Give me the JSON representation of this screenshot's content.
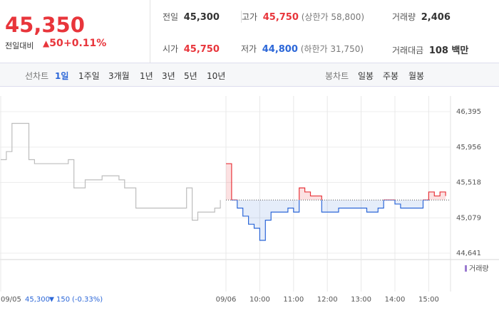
{
  "header": {
    "price": "45,350",
    "change_label": "전일대비",
    "change": "50",
    "change_rate": "+0.11%"
  },
  "summary": [
    {
      "label": "전일",
      "value": "45,300"
    },
    {
      "label": "고가",
      "value": "45,750",
      "note": "(상한가 58,800)"
    },
    {
      "label": "거래량",
      "value": "2,406"
    },
    {
      "label": "시가",
      "value": "45,750"
    },
    {
      "label": "저가",
      "value": "44,800",
      "note": "(하한가 31,750)"
    },
    {
      "label": "거래대금",
      "value": "108 백만"
    }
  ],
  "tabs": {
    "line_label": "선차트",
    "line": [
      "1일",
      "1주일",
      "3개월",
      "1년",
      "3년",
      "5년",
      "10년"
    ],
    "candle_label": "봉차트",
    "candle": [
      "일봉",
      "주봉",
      "월봉"
    ]
  },
  "chart_data": {
    "type": "line",
    "categories": [
      "09/05",
      null,
      null,
      null,
      null,
      null,
      null,
      null,
      null,
      null,
      null,
      null,
      null,
      null,
      null,
      null,
      null,
      null,
      null,
      null,
      null,
      null,
      null,
      null,
      null,
      null,
      null,
      null,
      null,
      null,
      null,
      null,
      null,
      null,
      null,
      null,
      null,
      null,
      null,
      null,
      "09/06",
      null,
      null,
      null,
      null,
      null,
      "10:00",
      null,
      null,
      null,
      null,
      null,
      "11:00",
      null,
      null,
      null,
      null,
      null,
      "12:00",
      null,
      null,
      null,
      null,
      null,
      "13:00",
      null,
      null,
      null,
      null,
      null,
      "14:00",
      null,
      null,
      null,
      null,
      null,
      "15:00",
      null,
      null,
      null
    ],
    "series": [
      {
        "color": "#bdbdbd",
        "values": [
          45800,
          45900,
          46250,
          46250,
          46250,
          45800,
          45750,
          45750,
          45750,
          45750,
          45750,
          45750,
          45800,
          45450,
          45450,
          45550,
          45550,
          45550,
          45600,
          45600,
          45600,
          45550,
          45450,
          45450,
          45200,
          45200,
          45200,
          45200,
          45200,
          45200,
          45200,
          45200,
          45200,
          45450,
          45050,
          45150,
          45150,
          45150,
          45200,
          45300,
          null,
          null,
          null,
          null,
          null,
          null,
          null,
          null,
          null,
          null,
          null,
          null,
          null,
          null,
          null,
          null,
          null,
          null,
          null,
          null,
          null,
          null,
          null,
          null,
          null,
          null,
          null,
          null,
          null,
          null,
          null,
          null,
          null,
          null,
          null,
          null,
          null,
          null,
          null,
          null
        ]
      },
      {
        "up_color": "#e8353b",
        "down_color": "#2c67d8",
        "values": [
          null,
          null,
          null,
          null,
          null,
          null,
          null,
          null,
          null,
          null,
          null,
          null,
          null,
          null,
          null,
          null,
          null,
          null,
          null,
          null,
          null,
          null,
          null,
          null,
          null,
          null,
          null,
          null,
          null,
          null,
          null,
          null,
          null,
          null,
          null,
          null,
          null,
          null,
          null,
          null,
          45750,
          45300,
          45200,
          45100,
          45000,
          44950,
          44800,
          45050,
          45150,
          45150,
          45150,
          45200,
          45150,
          45450,
          45400,
          45350,
          45350,
          45150,
          45150,
          45150,
          45200,
          45200,
          45200,
          45200,
          45200,
          45150,
          45150,
          45200,
          45300,
          45300,
          45250,
          45200,
          45200,
          45200,
          45200,
          45300,
          45400,
          45350,
          45400,
          45350
        ]
      }
    ],
    "baseline": 45300,
    "ylim": [
      44562,
      46589
    ],
    "yticks": [
      {
        "value": 46395,
        "label": "46,395"
      },
      {
        "value": 45956,
        "label": "45,956"
      },
      {
        "value": 45518,
        "label": "45,518"
      },
      {
        "value": 45079,
        "label": "45,079"
      },
      {
        "value": 44641,
        "label": "44,641"
      }
    ],
    "grid": true,
    "legend": "거래량"
  },
  "tooltip": {
    "price": "45,300",
    "change": "150",
    "rate": "(-0.33%)"
  }
}
